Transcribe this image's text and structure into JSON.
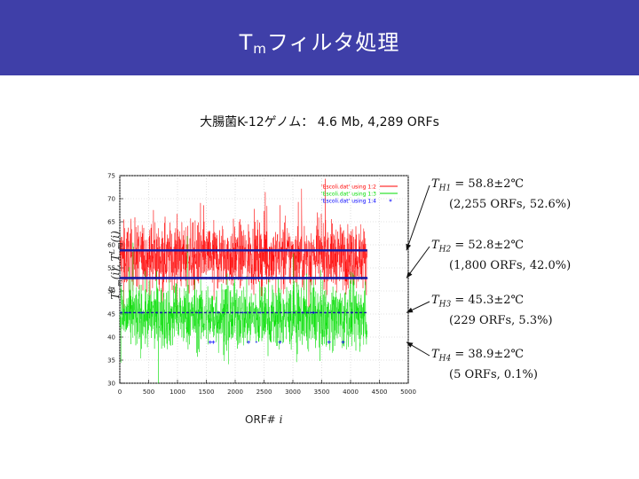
{
  "slide": {
    "title_main": "T",
    "title_sub": "m",
    "title_rest": "フィルタ処理",
    "subtitle": "大腸菌K-12ゲノム： 4.6 Mb, 4,289 ORFs"
  },
  "axis": {
    "ylabel_a": "T",
    "ylabel_a_sup": "H",
    "ylabel_a_sub": "m",
    "ylabel_a_tail": "(i), ",
    "ylabel_b": "T",
    "ylabel_b_sup": "L",
    "ylabel_b_sub": "m",
    "ylabel_b_tail": "(i)",
    "xlabel_prefix": "ORF# ",
    "xlabel_var": "i"
  },
  "annotations": [
    {
      "label": "T",
      "sub": "H1",
      "value": " = 58.8±2℃",
      "detail": "(2,255 ORFs, 52.6%)"
    },
    {
      "label": "T",
      "sub": "H2",
      "value": " = 52.8±2℃",
      "detail": "(1,800 ORFs, 42.0%)"
    },
    {
      "label": "T",
      "sub": "H3",
      "value": " = 45.3±2℃",
      "detail": "(229 ORFs, 5.3%)"
    },
    {
      "label": "T",
      "sub": "H4",
      "value": " = 38.9±2℃",
      "detail": "(5 ORFs, 0.1%)"
    }
  ],
  "chart_data": {
    "type": "line",
    "xlim": [
      0,
      5000
    ],
    "ylim": [
      30,
      75
    ],
    "xticks": [
      0,
      500,
      1000,
      1500,
      2000,
      2500,
      3000,
      3500,
      4000,
      4500,
      5000
    ],
    "yticks": [
      30,
      35,
      40,
      45,
      50,
      55,
      60,
      65,
      70,
      75
    ],
    "grid": true,
    "legend_position": "top-right",
    "n_points": 4289,
    "series": [
      {
        "name": "'Escoli.dat' using 1:2",
        "color": "#ff0000",
        "mean": 57.5,
        "spread": 3.5
      },
      {
        "name": "'Escoli.dat' using 1:3",
        "color": "#00dd00",
        "mean": 44.5,
        "spread": 3.5
      },
      {
        "name": "'Escoli.dat' using 1:4",
        "color": "#0000ff",
        "marker": "+"
      }
    ],
    "threshold_lines": [
      58.8,
      52.8,
      45.3,
      38.9
    ]
  },
  "colors": {
    "title_bar": "#3f3fa8",
    "threshold_line": "#1a1aa0",
    "arrow": "#111111"
  }
}
